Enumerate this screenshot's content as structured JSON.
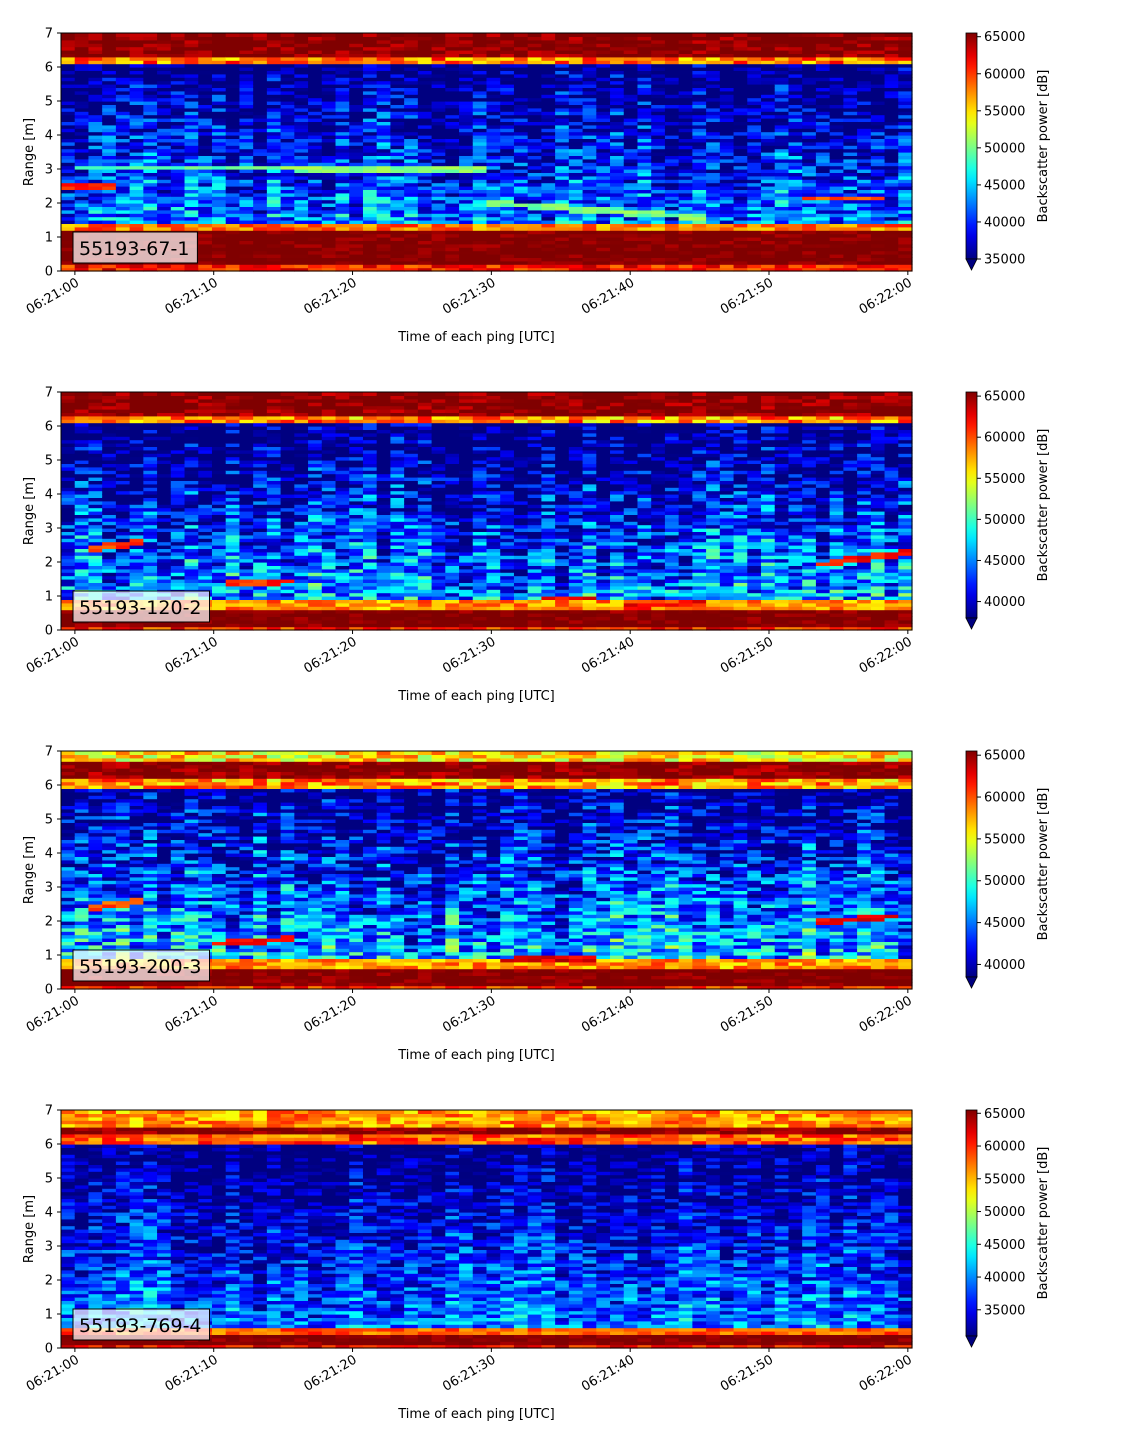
{
  "chart_data": [
    {
      "type": "heatmap",
      "label": "55193-67-1",
      "xlabel": "Time of each ping [UTC]",
      "ylabel": "Range [m]",
      "xticks": [
        "06:21:00",
        "06:21:10",
        "06:21:20",
        "06:21:30",
        "06:21:40",
        "06:21:50",
        "06:22:00"
      ],
      "xlim_seconds": [
        -1,
        60.3
      ],
      "ylim": [
        0,
        7
      ],
      "yticks": [
        0,
        1,
        2,
        3,
        4,
        5,
        6,
        7
      ],
      "colorbar": {
        "label": "Backscatter power [dB]",
        "min": 35000,
        "max": 65500,
        "ticks": [
          35000,
          40000,
          45000,
          50000,
          55000,
          60000,
          65000
        ],
        "extend": "min"
      },
      "bottom_band": {
        "from": 0.25,
        "to": 1.15
      },
      "top_band": {
        "from": 6.35,
        "to": 7.0
      },
      "background_level": 42000,
      "features": [
        {
          "t0": -1,
          "t1": 3,
          "r0": 2.5,
          "r1": 2.5,
          "level": 60500
        },
        {
          "t0": 0,
          "t1": 12,
          "r0": 3.05,
          "r1": 3.05,
          "level": 49000
        },
        {
          "t0": 12,
          "t1": 30,
          "r0": 3.05,
          "r1": 3.0,
          "level": 50500
        },
        {
          "t0": 30,
          "t1": 45,
          "r0": 2.0,
          "r1": 1.6,
          "level": 50000
        },
        {
          "t0": 52,
          "t1": 58,
          "r0": 2.15,
          "r1": 2.15,
          "level": 59000
        }
      ]
    },
    {
      "type": "heatmap",
      "label": "55193-120-2",
      "xlabel": "Time of each ping [UTC]",
      "ylabel": "Range [m]",
      "xticks": [
        "06:21:00",
        "06:21:10",
        "06:21:20",
        "06:21:30",
        "06:21:40",
        "06:21:50",
        "06:22:00"
      ],
      "xlim_seconds": [
        -1,
        60.3
      ],
      "ylim": [
        0,
        7
      ],
      "yticks": [
        0,
        1,
        2,
        3,
        4,
        5,
        6,
        7
      ],
      "colorbar": {
        "label": "Backscatter power [dB]",
        "min": 38000,
        "max": 65500,
        "ticks": [
          40000,
          45000,
          50000,
          55000,
          60000,
          65000
        ],
        "extend": "min"
      },
      "bottom_band": {
        "from": 0.1,
        "to": 0.6
      },
      "top_band": {
        "from": 6.35,
        "to": 7.0
      },
      "background_level": 44500,
      "features": [
        {
          "t0": 1,
          "t1": 5,
          "r0": 2.4,
          "r1": 2.6,
          "level": 60500
        },
        {
          "t0": 11,
          "t1": 16,
          "r0": 1.4,
          "r1": 1.45,
          "level": 61000
        },
        {
          "t0": 34,
          "t1": 38,
          "r0": 0.95,
          "r1": 0.95,
          "level": 62000
        },
        {
          "t0": 40,
          "t1": 45,
          "r0": 0.7,
          "r1": 0.8,
          "level": 62000
        },
        {
          "t0": 53,
          "t1": 60,
          "r0": 1.9,
          "r1": 2.3,
          "level": 62000
        }
      ]
    },
    {
      "type": "heatmap",
      "label": "55193-200-3",
      "xlabel": "Time of each ping [UTC]",
      "ylabel": "Range [m]",
      "xticks": [
        "06:21:00",
        "06:21:10",
        "06:21:20",
        "06:21:30",
        "06:21:40",
        "06:21:50",
        "06:22:00"
      ],
      "xlim_seconds": [
        -1,
        60.3
      ],
      "ylim": [
        0,
        7
      ],
      "yticks": [
        0,
        1,
        2,
        3,
        4,
        5,
        6,
        7
      ],
      "colorbar": {
        "label": "Backscatter power [dB]",
        "min": 38500,
        "max": 65500,
        "ticks": [
          40000,
          45000,
          50000,
          55000,
          60000,
          65000
        ],
        "extend": "min"
      },
      "bottom_band": {
        "from": 0.1,
        "to": 0.55
      },
      "top_band": {
        "from": 6.2,
        "to": 6.7
      },
      "background_level": 46000,
      "features": [
        {
          "t0": 1,
          "t1": 5,
          "r0": 2.4,
          "r1": 2.6,
          "level": 60000
        },
        {
          "t0": 10,
          "t1": 16,
          "r0": 1.35,
          "r1": 1.5,
          "level": 62000
        },
        {
          "t0": 31,
          "t1": 38,
          "r0": 0.85,
          "r1": 0.95,
          "level": 63000
        },
        {
          "t0": 53,
          "t1": 59,
          "r0": 1.95,
          "r1": 2.15,
          "level": 62500
        }
      ]
    },
    {
      "type": "heatmap",
      "label": "55193-769-4",
      "xlabel": "Time of each ping [UTC]",
      "ylabel": "Range [m]",
      "xticks": [
        "06:21:00",
        "06:21:10",
        "06:21:20",
        "06:21:30",
        "06:21:40",
        "06:21:50",
        "06:22:00"
      ],
      "xlim_seconds": [
        -1,
        60.3
      ],
      "ylim": [
        0,
        7
      ],
      "yticks": [
        0,
        1,
        2,
        3,
        4,
        5,
        6,
        7
      ],
      "colorbar": {
        "label": "Backscatter power [dB]",
        "min": 31000,
        "max": 65500,
        "ticks": [
          35000,
          40000,
          45000,
          50000,
          55000,
          60000,
          65000
        ],
        "extend": "min"
      },
      "bottom_band": {
        "from": 0.15,
        "to": 0.35
      },
      "top_band": {
        "from": 6.3,
        "to": 6.45
      },
      "background_level": 38000,
      "features": []
    }
  ]
}
